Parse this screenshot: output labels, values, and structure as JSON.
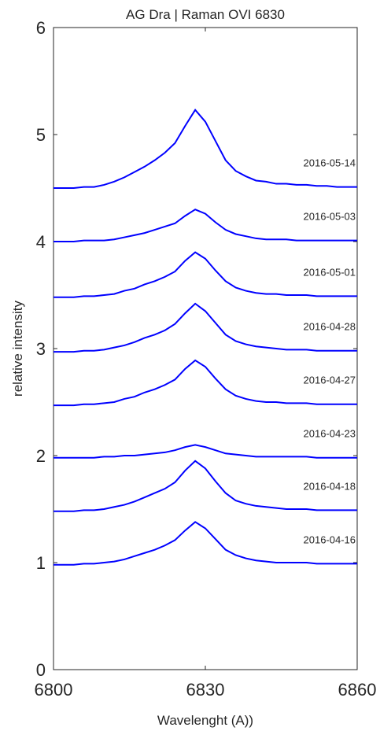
{
  "chart_data": {
    "type": "line",
    "title": "AG Dra | Raman OVI 6830",
    "xlabel": "Wavelenght (A))",
    "ylabel": "relative intensity",
    "x": [
      6800,
      6802,
      6804,
      6806,
      6808,
      6810,
      6812,
      6814,
      6816,
      6818,
      6820,
      6822,
      6824,
      6826,
      6828,
      6830,
      6832,
      6834,
      6836,
      6838,
      6840,
      6842,
      6844,
      6846,
      6848,
      6850,
      6852,
      6854,
      6856,
      6858,
      6860
    ],
    "series": [
      {
        "name": "2016-05-14",
        "color": "#0000ff",
        "values": [
          4.5,
          4.5,
          4.5,
          4.51,
          4.51,
          4.53,
          4.56,
          4.6,
          4.65,
          4.7,
          4.76,
          4.83,
          4.92,
          5.08,
          5.23,
          5.12,
          4.94,
          4.76,
          4.66,
          4.61,
          4.57,
          4.56,
          4.54,
          4.54,
          4.53,
          4.53,
          4.52,
          4.52,
          4.51,
          4.51,
          4.51
        ]
      },
      {
        "name": "2016-05-03",
        "color": "#0000ff",
        "values": [
          4,
          4,
          4,
          4.01,
          4.01,
          4.01,
          4.02,
          4.04,
          4.06,
          4.08,
          4.11,
          4.14,
          4.17,
          4.24,
          4.3,
          4.26,
          4.18,
          4.11,
          4.07,
          4.05,
          4.03,
          4.02,
          4.02,
          4.02,
          4.01,
          4.01,
          4.01,
          4.01,
          4.01,
          4.01,
          4.01
        ]
      },
      {
        "name": "2016-05-01",
        "color": "#0000ff",
        "values": [
          3.48,
          3.48,
          3.48,
          3.49,
          3.49,
          3.5,
          3.51,
          3.54,
          3.56,
          3.6,
          3.63,
          3.67,
          3.72,
          3.82,
          3.9,
          3.84,
          3.73,
          3.63,
          3.57,
          3.54,
          3.52,
          3.51,
          3.51,
          3.5,
          3.5,
          3.5,
          3.49,
          3.49,
          3.49,
          3.49,
          3.49
        ]
      },
      {
        "name": "2016-04-28",
        "color": "#0000ff",
        "values": [
          2.97,
          2.97,
          2.97,
          2.98,
          2.98,
          2.99,
          3.01,
          3.03,
          3.06,
          3.1,
          3.13,
          3.17,
          3.23,
          3.33,
          3.42,
          3.35,
          3.24,
          3.13,
          3.07,
          3.04,
          3.02,
          3.01,
          3,
          2.99,
          2.99,
          2.99,
          2.98,
          2.98,
          2.98,
          2.98,
          2.98
        ]
      },
      {
        "name": "2016-04-27",
        "color": "#0000ff",
        "values": [
          2.47,
          2.47,
          2.47,
          2.48,
          2.48,
          2.49,
          2.5,
          2.53,
          2.55,
          2.59,
          2.62,
          2.66,
          2.71,
          2.81,
          2.89,
          2.83,
          2.72,
          2.62,
          2.56,
          2.53,
          2.51,
          2.5,
          2.5,
          2.49,
          2.49,
          2.49,
          2.48,
          2.48,
          2.48,
          2.48,
          2.48
        ]
      },
      {
        "name": "2016-04-23",
        "color": "#0000ff",
        "values": [
          1.98,
          1.98,
          1.98,
          1.98,
          1.98,
          1.99,
          1.99,
          2,
          2,
          2.01,
          2.02,
          2.03,
          2.05,
          2.08,
          2.1,
          2.08,
          2.05,
          2.02,
          2.01,
          2,
          1.99,
          1.99,
          1.99,
          1.99,
          1.99,
          1.99,
          1.98,
          1.98,
          1.98,
          1.98,
          1.98
        ]
      },
      {
        "name": "2016-04-18",
        "color": "#0000ff",
        "values": [
          1.48,
          1.48,
          1.48,
          1.49,
          1.49,
          1.5,
          1.52,
          1.54,
          1.57,
          1.61,
          1.65,
          1.69,
          1.75,
          1.86,
          1.95,
          1.88,
          1.76,
          1.65,
          1.58,
          1.55,
          1.53,
          1.52,
          1.51,
          1.5,
          1.5,
          1.5,
          1.49,
          1.49,
          1.49,
          1.49,
          1.49
        ]
      },
      {
        "name": "2016-04-16",
        "color": "#0000ff",
        "values": [
          0.98,
          0.98,
          0.98,
          0.99,
          0.99,
          1,
          1.01,
          1.03,
          1.06,
          1.09,
          1.12,
          1.16,
          1.21,
          1.3,
          1.38,
          1.32,
          1.22,
          1.12,
          1.07,
          1.04,
          1.02,
          1.01,
          1,
          1,
          1,
          1,
          0.99,
          0.99,
          0.99,
          0.99,
          0.99
        ]
      }
    ],
    "xlim": [
      6800,
      6860
    ],
    "xticks": [
      6800,
      6830,
      6860
    ],
    "ylim": [
      0,
      6
    ],
    "yticks": [
      0,
      1,
      2,
      3,
      4,
      5,
      6
    ],
    "grid": false
  }
}
